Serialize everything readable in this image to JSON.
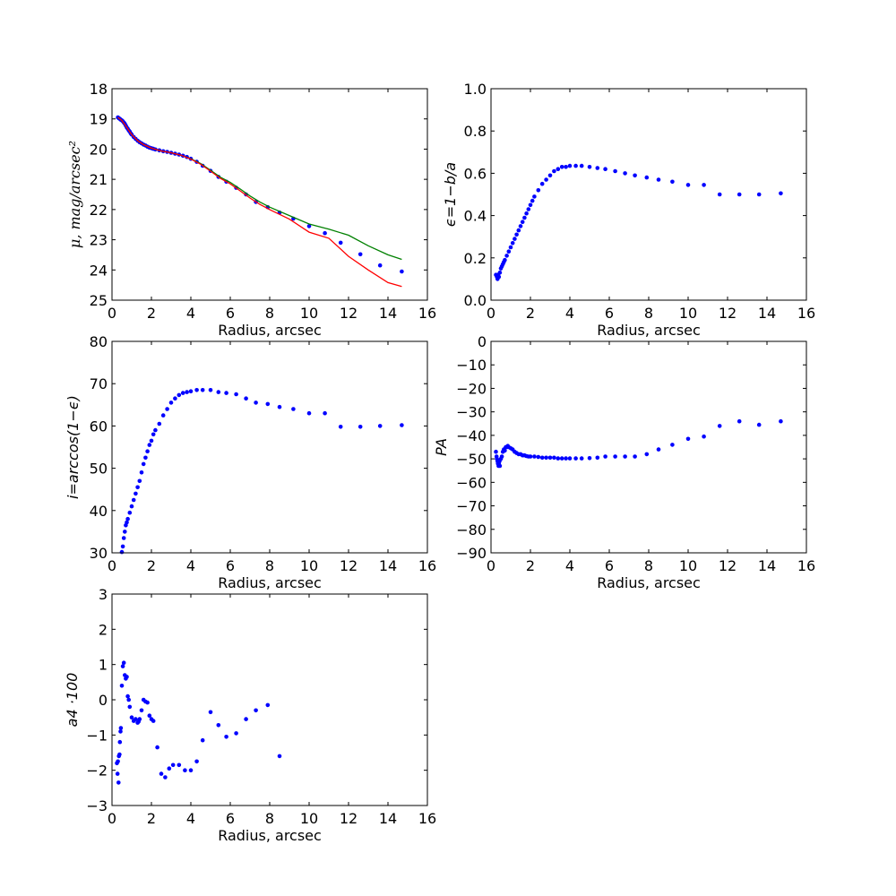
{
  "chart_data": [
    {
      "id": "p1",
      "type": "scatter",
      "xlabel": "Radius, arcsec",
      "ylabel": "μ, mag/arcsec²",
      "xlim": [
        0,
        16
      ],
      "ylim": [
        25,
        18
      ],
      "y_inverted": true,
      "xticks": [
        "0",
        "2",
        "4",
        "6",
        "8",
        "10",
        "12",
        "14",
        "16"
      ],
      "yticks": [
        "18",
        "19",
        "20",
        "21",
        "22",
        "23",
        "24",
        "25"
      ],
      "series": [
        {
          "kind": "points",
          "color": "#0000ff",
          "x": [
            0.3,
            0.35,
            0.4,
            0.45,
            0.5,
            0.55,
            0.6,
            0.65,
            0.7,
            0.75,
            0.8,
            0.85,
            0.9,
            0.95,
            1.0,
            1.1,
            1.2,
            1.3,
            1.4,
            1.5,
            1.6,
            1.7,
            1.8,
            1.9,
            2.0,
            2.1,
            2.2,
            2.4,
            2.6,
            2.8,
            3.0,
            3.2,
            3.4,
            3.6,
            3.8,
            4.0,
            4.3,
            4.6,
            5.0,
            5.4,
            5.8,
            6.3,
            6.8,
            7.3,
            7.9,
            8.5,
            9.2,
            10.0,
            10.8,
            11.6,
            12.6,
            13.6,
            14.7
          ],
          "y": [
            18.95,
            18.98,
            19.0,
            19.03,
            19.05,
            19.08,
            19.12,
            19.16,
            19.22,
            19.28,
            19.33,
            19.38,
            19.42,
            19.48,
            19.52,
            19.6,
            19.66,
            19.72,
            19.77,
            19.81,
            19.85,
            19.88,
            19.92,
            19.95,
            19.97,
            19.99,
            20.01,
            20.04,
            20.07,
            20.09,
            20.12,
            20.15,
            20.18,
            20.22,
            20.26,
            20.32,
            20.42,
            20.55,
            20.72,
            20.92,
            21.08,
            21.28,
            21.5,
            21.75,
            21.92,
            22.1,
            22.3,
            22.55,
            22.78,
            23.1,
            23.48,
            23.85,
            24.05
          ]
        },
        {
          "kind": "line",
          "color": "#008000",
          "x": [
            0.3,
            0.5,
            0.8,
            1.0,
            1.3,
            1.6,
            2.0,
            2.5,
            3.0,
            3.5,
            4.0,
            4.5,
            5.0,
            5.5,
            6.0,
            6.5,
            7.0,
            7.5,
            8.0,
            9.0,
            10.0,
            11.0,
            12.0,
            13.0,
            14.0,
            14.7
          ],
          "y": [
            18.95,
            19.05,
            19.33,
            19.52,
            19.72,
            19.85,
            19.97,
            20.06,
            20.12,
            20.2,
            20.32,
            20.48,
            20.7,
            20.93,
            21.1,
            21.32,
            21.55,
            21.75,
            21.92,
            22.2,
            22.48,
            22.65,
            22.85,
            23.2,
            23.5,
            23.65
          ]
        },
        {
          "kind": "line",
          "color": "#ff0000",
          "x": [
            0.3,
            0.5,
            0.8,
            1.0,
            1.3,
            1.6,
            2.0,
            2.5,
            3.0,
            3.5,
            4.0,
            4.5,
            5.0,
            5.5,
            6.0,
            6.5,
            7.0,
            7.5,
            8.0,
            9.0,
            10.0,
            11.0,
            12.0,
            13.0,
            14.0,
            14.7
          ],
          "y": [
            18.95,
            19.05,
            19.33,
            19.52,
            19.72,
            19.85,
            19.97,
            20.06,
            20.12,
            20.2,
            20.33,
            20.5,
            20.73,
            20.97,
            21.15,
            21.38,
            21.62,
            21.83,
            22.0,
            22.32,
            22.75,
            22.95,
            23.55,
            24.0,
            24.42,
            24.55
          ]
        }
      ]
    },
    {
      "id": "p2",
      "type": "scatter",
      "xlabel": "Radius, arcsec",
      "ylabel": "ϵ=1−b/a",
      "xlim": [
        0,
        16
      ],
      "ylim": [
        0,
        1
      ],
      "xticks": [
        "0",
        "2",
        "4",
        "6",
        "8",
        "10",
        "12",
        "14",
        "16"
      ],
      "yticks": [
        "0.0",
        "0.2",
        "0.4",
        "0.6",
        "0.8",
        "1.0"
      ],
      "series": [
        {
          "kind": "points",
          "color": "#0000ff",
          "x": [
            0.25,
            0.3,
            0.33,
            0.36,
            0.4,
            0.45,
            0.5,
            0.55,
            0.6,
            0.65,
            0.7,
            0.8,
            0.9,
            1.0,
            1.1,
            1.2,
            1.3,
            1.4,
            1.5,
            1.6,
            1.7,
            1.8,
            1.9,
            2.0,
            2.1,
            2.2,
            2.4,
            2.6,
            2.8,
            3.0,
            3.2,
            3.4,
            3.6,
            3.8,
            4.0,
            4.3,
            4.6,
            5.0,
            5.4,
            5.8,
            6.3,
            6.8,
            7.3,
            7.9,
            8.5,
            9.2,
            10.0,
            10.8,
            11.6,
            12.6,
            13.6,
            14.7
          ],
          "y": [
            0.12,
            0.11,
            0.1,
            0.12,
            0.11,
            0.13,
            0.15,
            0.16,
            0.17,
            0.18,
            0.19,
            0.21,
            0.23,
            0.25,
            0.27,
            0.29,
            0.31,
            0.33,
            0.35,
            0.37,
            0.39,
            0.41,
            0.43,
            0.45,
            0.47,
            0.49,
            0.52,
            0.55,
            0.57,
            0.59,
            0.61,
            0.62,
            0.63,
            0.63,
            0.635,
            0.635,
            0.635,
            0.63,
            0.625,
            0.62,
            0.61,
            0.6,
            0.59,
            0.58,
            0.57,
            0.56,
            0.545,
            0.545,
            0.5,
            0.5,
            0.5,
            0.505
          ]
        }
      ]
    },
    {
      "id": "p3",
      "type": "scatter",
      "xlabel": "Radius, arcsec",
      "ylabel": "i=arccos(1−ϵ)",
      "xlim": [
        0,
        16
      ],
      "ylim": [
        30,
        80
      ],
      "xticks": [
        "0",
        "2",
        "4",
        "6",
        "8",
        "10",
        "12",
        "14",
        "16"
      ],
      "yticks": [
        "30",
        "40",
        "50",
        "60",
        "70",
        "80"
      ],
      "series": [
        {
          "kind": "points",
          "color": "#0000ff",
          "x": [
            0.5,
            0.55,
            0.6,
            0.65,
            0.7,
            0.75,
            0.8,
            0.9,
            1.0,
            1.1,
            1.2,
            1.3,
            1.4,
            1.5,
            1.6,
            1.7,
            1.8,
            1.9,
            2.0,
            2.1,
            2.2,
            2.4,
            2.6,
            2.8,
            3.0,
            3.2,
            3.4,
            3.6,
            3.8,
            4.0,
            4.3,
            4.6,
            5.0,
            5.4,
            5.8,
            6.3,
            6.8,
            7.3,
            7.9,
            8.5,
            9.2,
            10.0,
            10.8,
            11.6,
            12.6,
            13.6,
            14.7
          ],
          "y": [
            30.2,
            31.5,
            33.5,
            35.0,
            36.5,
            37.2,
            38.0,
            39.5,
            41.0,
            42.5,
            44.0,
            45.5,
            47.0,
            49.0,
            51.0,
            52.5,
            54.0,
            55.5,
            56.5,
            58.0,
            59.0,
            60.5,
            62.5,
            64.0,
            65.5,
            66.5,
            67.3,
            67.8,
            68.0,
            68.2,
            68.5,
            68.5,
            68.5,
            68.0,
            67.8,
            67.5,
            66.5,
            65.5,
            65.2,
            64.5,
            64.0,
            63.0,
            63.0,
            59.8,
            59.8,
            60.0,
            60.2
          ]
        }
      ]
    },
    {
      "id": "p4",
      "type": "scatter",
      "xlabel": "Radius, arcsec",
      "ylabel": "PA",
      "xlim": [
        0,
        16
      ],
      "ylim": [
        -90,
        0
      ],
      "xticks": [
        "0",
        "2",
        "4",
        "6",
        "8",
        "10",
        "12",
        "14",
        "16"
      ],
      "yticks": [
        "0",
        "−10",
        "−20",
        "−30",
        "−40",
        "−50",
        "−60",
        "−70",
        "−80",
        "−90"
      ],
      "series": [
        {
          "kind": "points",
          "color": "#0000ff",
          "x": [
            0.25,
            0.28,
            0.3,
            0.33,
            0.35,
            0.38,
            0.4,
            0.43,
            0.45,
            0.5,
            0.55,
            0.6,
            0.65,
            0.7,
            0.75,
            0.8,
            0.85,
            0.9,
            1.0,
            1.1,
            1.2,
            1.3,
            1.4,
            1.5,
            1.6,
            1.7,
            1.8,
            1.9,
            2.0,
            2.2,
            2.4,
            2.6,
            2.8,
            3.0,
            3.2,
            3.4,
            3.6,
            3.8,
            4.0,
            4.3,
            4.6,
            5.0,
            5.4,
            5.8,
            6.3,
            6.8,
            7.3,
            7.9,
            8.5,
            9.2,
            10.0,
            10.8,
            11.6,
            12.6,
            13.6,
            14.7
          ],
          "y": [
            -47,
            -49,
            -50,
            -51,
            -52,
            -53,
            -52,
            -51,
            -53,
            -50,
            -49,
            -47,
            -46,
            -46.5,
            -45,
            -45,
            -44.5,
            -45,
            -45.5,
            -46,
            -47,
            -47.5,
            -48,
            -48,
            -48.5,
            -48.5,
            -48.8,
            -49,
            -49,
            -49,
            -49.2,
            -49.5,
            -49.5,
            -49.5,
            -49.5,
            -49.8,
            -49.8,
            -49.8,
            -49.8,
            -49.8,
            -49.8,
            -49.7,
            -49.5,
            -49,
            -49,
            -49,
            -49,
            -48,
            -46,
            -44,
            -41.5,
            -40.5,
            -36,
            -34,
            -35.5,
            -34
          ]
        }
      ]
    },
    {
      "id": "p5",
      "type": "scatter",
      "xlabel": "Radius, arcsec",
      "ylabel": "a4 ·100",
      "xlim": [
        0,
        16
      ],
      "ylim": [
        -3,
        3
      ],
      "xticks": [
        "0",
        "2",
        "4",
        "6",
        "8",
        "10",
        "12",
        "14",
        "16"
      ],
      "yticks": [
        "3",
        "2",
        "1",
        "0",
        "−1",
        "−2",
        "−3"
      ],
      "series": [
        {
          "kind": "points",
          "color": "#0000ff",
          "x": [
            0.25,
            0.28,
            0.3,
            0.33,
            0.35,
            0.38,
            0.4,
            0.43,
            0.45,
            0.5,
            0.55,
            0.6,
            0.65,
            0.7,
            0.75,
            0.8,
            0.85,
            0.9,
            1.0,
            1.1,
            1.2,
            1.3,
            1.35,
            1.4,
            1.5,
            1.6,
            1.7,
            1.8,
            1.9,
            2.0,
            2.1,
            2.3,
            2.5,
            2.7,
            2.9,
            3.1,
            3.4,
            3.7,
            4.0,
            4.3,
            4.6,
            5.0,
            5.4,
            5.8,
            6.3,
            6.8,
            7.3,
            7.9,
            8.5
          ],
          "y": [
            -1.8,
            -2.1,
            -1.75,
            -2.35,
            -1.6,
            -1.55,
            -1.2,
            -0.9,
            -0.8,
            0.4,
            0.95,
            1.05,
            0.7,
            0.6,
            0.65,
            0.1,
            0.0,
            -0.2,
            -0.5,
            -0.6,
            -0.55,
            -0.65,
            -0.62,
            -0.55,
            -0.3,
            0.0,
            -0.05,
            -0.08,
            -0.45,
            -0.55,
            -0.6,
            -1.35,
            -2.1,
            -2.2,
            -1.95,
            -1.85,
            -1.85,
            -2.0,
            -2.0,
            -1.75,
            -1.15,
            -0.35,
            -0.72,
            -1.05,
            -0.95,
            -0.55,
            -0.3,
            -0.15,
            -1.6
          ]
        }
      ]
    }
  ]
}
